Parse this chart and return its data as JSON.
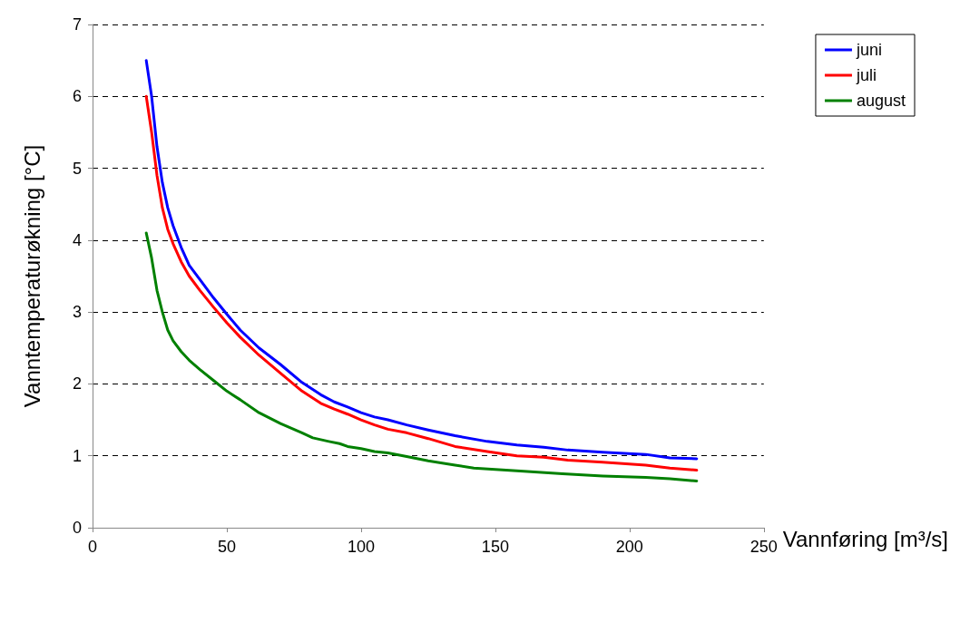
{
  "chart_data": {
    "type": "line",
    "xlabel": "Vannføring [m³/s]",
    "ylabel": "Vanntemperaturøkning [°C]",
    "xlim": [
      0,
      250
    ],
    "xticks": [
      0,
      50,
      100,
      150,
      200,
      250
    ],
    "ylim": [
      0,
      7
    ],
    "yticks": [
      0,
      1,
      2,
      3,
      4,
      5,
      6,
      7
    ],
    "grid": "y",
    "legend": "top right",
    "marker": "none",
    "line_style": "solid",
    "series": [
      {
        "name": "juni",
        "color": "#0000ff",
        "x": [
          20,
          22,
          24,
          26,
          28,
          30,
          33,
          36,
          40,
          45,
          50,
          55,
          62,
          70,
          78,
          85,
          90,
          95,
          100,
          105,
          110,
          117,
          125,
          135,
          147,
          158,
          168,
          177,
          190,
          206,
          215,
          225
        ],
        "values": [
          6.5,
          6.0,
          5.3,
          4.8,
          4.45,
          4.2,
          3.9,
          3.65,
          3.45,
          3.2,
          2.97,
          2.75,
          2.5,
          2.27,
          2.02,
          1.85,
          1.75,
          1.68,
          1.6,
          1.54,
          1.5,
          1.43,
          1.36,
          1.28,
          1.2,
          1.15,
          1.12,
          1.08,
          1.05,
          1.02,
          0.97,
          0.96
        ]
      },
      {
        "name": "juli",
        "color": "#ff0000",
        "x": [
          20,
          22,
          24,
          26,
          28,
          30,
          33,
          36,
          40,
          45,
          50,
          55,
          62,
          70,
          78,
          85,
          90,
          95,
          100,
          105,
          110,
          117,
          125,
          135,
          147,
          158,
          168,
          177,
          190,
          206,
          215,
          225
        ],
        "values": [
          6.0,
          5.5,
          4.9,
          4.45,
          4.15,
          3.95,
          3.7,
          3.5,
          3.3,
          3.07,
          2.85,
          2.65,
          2.4,
          2.15,
          1.9,
          1.73,
          1.65,
          1.58,
          1.5,
          1.43,
          1.37,
          1.32,
          1.24,
          1.13,
          1.06,
          1.0,
          0.98,
          0.94,
          0.91,
          0.87,
          0.83,
          0.8
        ]
      },
      {
        "name": "august",
        "color": "#008000",
        "x": [
          20,
          22,
          24,
          26,
          28,
          30,
          33,
          36,
          40,
          45,
          50,
          55,
          62,
          70,
          78,
          82,
          88,
          92,
          95,
          100,
          105,
          110,
          117,
          125,
          135,
          142,
          158,
          175,
          190,
          206,
          215,
          225
        ],
        "values": [
          4.1,
          3.75,
          3.3,
          3.0,
          2.75,
          2.6,
          2.45,
          2.33,
          2.2,
          2.05,
          1.9,
          1.78,
          1.6,
          1.45,
          1.32,
          1.25,
          1.2,
          1.17,
          1.13,
          1.1,
          1.06,
          1.04,
          0.99,
          0.93,
          0.87,
          0.83,
          0.79,
          0.75,
          0.72,
          0.7,
          0.68,
          0.65
        ]
      }
    ]
  }
}
